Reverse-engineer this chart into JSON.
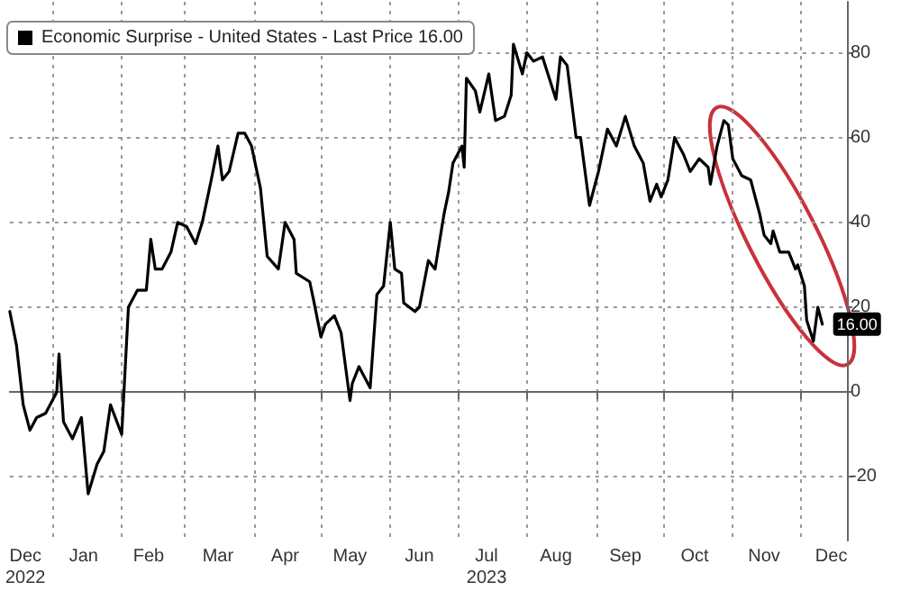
{
  "chart_data": {
    "type": "line",
    "x": [
      "2022-12-13",
      "2022-12-16",
      "2022-12-19",
      "2022-12-22",
      "2022-12-25",
      "2022-12-29",
      "2023-01-03",
      "2023-01-04",
      "2023-01-06",
      "2023-01-10",
      "2023-01-14",
      "2023-01-17",
      "2023-01-21",
      "2023-01-24",
      "2023-01-27",
      "2023-02-01",
      "2023-02-04",
      "2023-02-08",
      "2023-02-12",
      "2023-02-14",
      "2023-02-16",
      "2023-02-19",
      "2023-02-23",
      "2023-02-26",
      "2023-03-02",
      "2023-03-06",
      "2023-03-09",
      "2023-03-13",
      "2023-03-16",
      "2023-03-18",
      "2023-03-21",
      "2023-03-25",
      "2023-03-28",
      "2023-03-31",
      "2023-04-04",
      "2023-04-07",
      "2023-04-12",
      "2023-04-15",
      "2023-04-19",
      "2023-04-20",
      "2023-04-26",
      "2023-04-28",
      "2023-05-01",
      "2023-05-03",
      "2023-05-07",
      "2023-05-10",
      "2023-05-14",
      "2023-05-15",
      "2023-05-18",
      "2023-05-23",
      "2023-05-26",
      "2023-05-29",
      "2023-06-01",
      "2023-06-03",
      "2023-06-06",
      "2023-06-07",
      "2023-06-12",
      "2023-06-14",
      "2023-06-18",
      "2023-06-21",
      "2023-06-25",
      "2023-06-27",
      "2023-06-29",
      "2023-07-03",
      "2023-07-04",
      "2023-07-05",
      "2023-07-09",
      "2023-07-11",
      "2023-07-15",
      "2023-07-18",
      "2023-07-22",
      "2023-07-25",
      "2023-07-26",
      "2023-07-30",
      "2023-08-01",
      "2023-08-04",
      "2023-08-08",
      "2023-08-11",
      "2023-08-14",
      "2023-08-16",
      "2023-08-19",
      "2023-08-23",
      "2023-08-25",
      "2023-08-29",
      "2023-09-02",
      "2023-09-06",
      "2023-09-10",
      "2023-09-14",
      "2023-09-18",
      "2023-09-22",
      "2023-09-25",
      "2023-09-28",
      "2023-09-30",
      "2023-10-03",
      "2023-10-06",
      "2023-10-10",
      "2023-10-13",
      "2023-10-17",
      "2023-10-21",
      "2023-10-22",
      "2023-10-25",
      "2023-10-28",
      "2023-10-30",
      "2023-11-01",
      "2023-11-05",
      "2023-11-09",
      "2023-11-13",
      "2023-11-15",
      "2023-11-18",
      "2023-11-19",
      "2023-11-22",
      "2023-11-26",
      "2023-11-29",
      "2023-11-30",
      "2023-12-03",
      "2023-12-04",
      "2023-12-07",
      "2023-12-09",
      "2023-12-11"
    ],
    "series": [
      {
        "name": "Economic Surprise - United States - Last Price 16.00",
        "color": "#000000",
        "values": [
          19,
          11,
          -3,
          -9,
          -6,
          -5,
          0,
          9,
          -7,
          -11,
          -6,
          -24,
          -17,
          -14,
          -3,
          -10,
          20,
          24,
          24,
          36,
          29,
          29,
          33,
          40,
          39,
          35,
          40,
          50,
          58,
          50,
          52,
          61,
          61,
          58,
          48,
          32,
          29,
          40,
          36,
          28,
          26,
          21,
          13,
          16,
          18,
          14,
          -2,
          2,
          6,
          1,
          23,
          25,
          40,
          29,
          28,
          21,
          19,
          20,
          31,
          29,
          42,
          47,
          54,
          58,
          53,
          74,
          71,
          66,
          75,
          64,
          65,
          70,
          82,
          75,
          80,
          78,
          79,
          74,
          69,
          79,
          77,
          60,
          60,
          44,
          52,
          62,
          58,
          65,
          58,
          54,
          45,
          49,
          46,
          50,
          60,
          56,
          52,
          55,
          53,
          49,
          58,
          64,
          63,
          55,
          51,
          50,
          42,
          37,
          35,
          38,
          33,
          33,
          29,
          30,
          25,
          17,
          12,
          20,
          16
        ],
        "value_labels": [
          null,
          null,
          null,
          null,
          null,
          null,
          null,
          null,
          null,
          null,
          null,
          null,
          null,
          null,
          null,
          null,
          null,
          null,
          null,
          null,
          null,
          null,
          null,
          null,
          null,
          null,
          null,
          null,
          null,
          null,
          null,
          null,
          null,
          null,
          null,
          null,
          null,
          null,
          null,
          null,
          null,
          null,
          null,
          null,
          null,
          null,
          null,
          null,
          null,
          null,
          null,
          null,
          null,
          null,
          null,
          null,
          null,
          null,
          null,
          null,
          null,
          null,
          null,
          null,
          null,
          null,
          null,
          null,
          null,
          null,
          null,
          null,
          null,
          null,
          null,
          null,
          null,
          null,
          null,
          null,
          null,
          null,
          null,
          null,
          null,
          null,
          null,
          null,
          null,
          null,
          null,
          null,
          null,
          null,
          null,
          null,
          null,
          null,
          null,
          null,
          null,
          null,
          null,
          null,
          null,
          null,
          null,
          null,
          null,
          null,
          null,
          null,
          null,
          null,
          null,
          null,
          null,
          null,
          "16.00"
        ]
      }
    ],
    "xlim": [
      "2022-12-13",
      "2023-12-22"
    ],
    "xticks": [
      {
        "value": "2023-01-01",
        "label": null
      },
      {
        "value": "2023-02-01",
        "label": null
      },
      {
        "value": "2023-03-01",
        "label": null
      },
      {
        "value": "2023-04-01",
        "label": null
      },
      {
        "value": "2023-05-01",
        "label": null
      },
      {
        "value": "2023-06-01",
        "label": null
      },
      {
        "value": "2023-07-01",
        "label": null
      },
      {
        "value": "2023-08-01",
        "label": null
      },
      {
        "value": "2023-09-01",
        "label": null
      },
      {
        "value": "2023-10-01",
        "label": null
      },
      {
        "value": "2023-11-01",
        "label": null
      },
      {
        "value": "2023-12-01",
        "label": null
      },
      {
        "value": "2022-12-20",
        "label": "Dec\n2022"
      },
      {
        "value": "2023-01-15",
        "label": "Jan"
      },
      {
        "value": "2023-02-13",
        "label": "Feb"
      },
      {
        "value": "2023-03-16",
        "label": "Mar"
      },
      {
        "value": "2023-04-15",
        "label": "Apr"
      },
      {
        "value": "2023-05-14",
        "label": "May"
      },
      {
        "value": "2023-06-14",
        "label": "Jun"
      },
      {
        "value": "2023-07-14",
        "label": "Jul\n2023"
      },
      {
        "value": "2023-08-14",
        "label": "Aug"
      },
      {
        "value": "2023-09-14",
        "label": "Sep"
      },
      {
        "value": "2023-10-15",
        "label": "Oct"
      },
      {
        "value": "2023-11-15",
        "label": "Nov"
      },
      {
        "value": "2023-12-15",
        "label": "Dec"
      }
    ],
    "ylim": [
      -35,
      92
    ],
    "yticks": [
      -20,
      0,
      20,
      40,
      60,
      80
    ],
    "grid": true,
    "legend": "top left",
    "marker": "none",
    "line_style": "solid"
  }
}
